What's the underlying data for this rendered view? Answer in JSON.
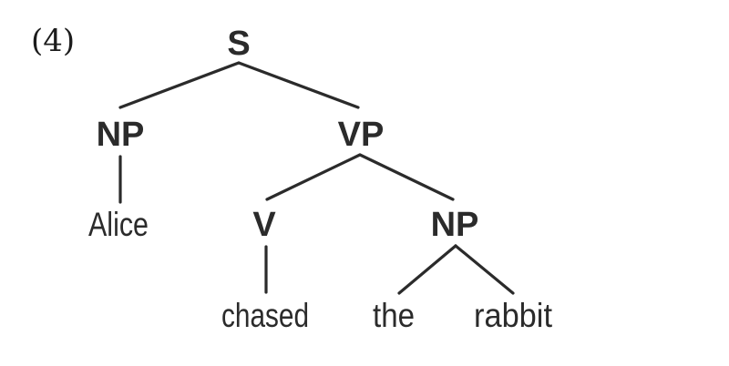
{
  "example_number": "(4)",
  "tree": {
    "root": "S",
    "subject_np": "NP",
    "subject_word": "Alice",
    "vp": "VP",
    "verb": "V",
    "verb_word": "chased",
    "object_np": "NP",
    "determiner": "the",
    "noun": "rabbit"
  }
}
